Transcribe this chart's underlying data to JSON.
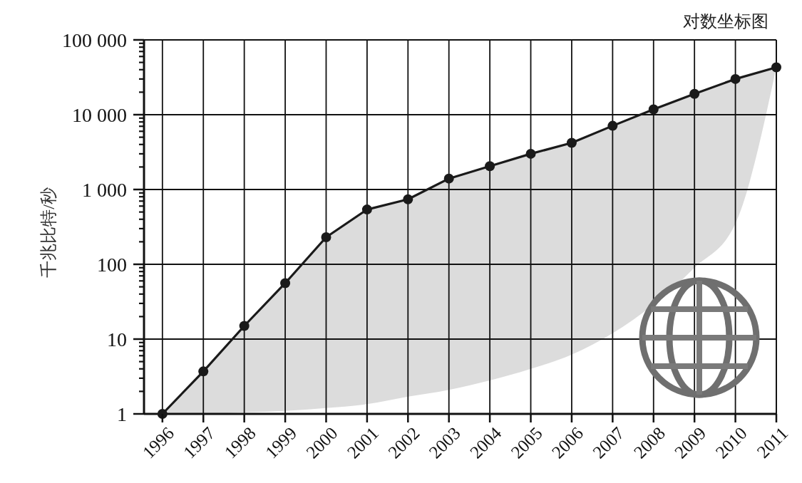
{
  "chart_data": {
    "type": "line",
    "title": "对数坐标图",
    "ylabel": "千兆比特/秒",
    "x": [
      1996,
      1997,
      1998,
      1999,
      2000,
      2001,
      2002,
      2003,
      2004,
      2005,
      2006,
      2007,
      2008,
      2009,
      2010,
      2011
    ],
    "xlim": [
      1995.55,
      2011
    ],
    "xticks": [
      1996,
      1997,
      1998,
      1999,
      2000,
      2001,
      2002,
      2003,
      2004,
      2005,
      2006,
      2007,
      2008,
      2009,
      2010,
      2011
    ],
    "ylim": [
      1,
      100000
    ],
    "yticks": [
      1,
      {
        "value": 2,
        "label": null
      },
      {
        "value": 3,
        "label": null
      },
      {
        "value": 4,
        "label": null
      },
      {
        "value": 5,
        "label": null
      },
      {
        "value": 6,
        "label": null
      },
      {
        "value": 7,
        "label": null
      },
      {
        "value": 8,
        "label": null
      },
      {
        "value": 9,
        "label": null
      },
      10,
      {
        "value": 20,
        "label": null
      },
      {
        "value": 30,
        "label": null
      },
      {
        "value": 40,
        "label": null
      },
      {
        "value": 50,
        "label": null
      },
      {
        "value": 60,
        "label": null
      },
      {
        "value": 70,
        "label": null
      },
      {
        "value": 80,
        "label": null
      },
      {
        "value": 90,
        "label": null
      },
      100,
      {
        "value": 200,
        "label": null
      },
      {
        "value": 300,
        "label": null
      },
      {
        "value": 400,
        "label": null
      },
      {
        "value": 500,
        "label": null
      },
      {
        "value": 600,
        "label": null
      },
      {
        "value": 700,
        "label": null
      },
      {
        "value": 800,
        "label": null
      },
      {
        "value": 900,
        "label": null
      },
      {
        "value": 1000,
        "label": "1 000"
      },
      {
        "value": 2000,
        "label": null
      },
      {
        "value": 3000,
        "label": null
      },
      {
        "value": 4000,
        "label": null
      },
      {
        "value": 5000,
        "label": null
      },
      {
        "value": 6000,
        "label": null
      },
      {
        "value": 7000,
        "label": null
      },
      {
        "value": 8000,
        "label": null
      },
      {
        "value": 9000,
        "label": null
      },
      {
        "value": 10000,
        "label": "10 000"
      },
      {
        "value": 20000,
        "label": null
      },
      {
        "value": 30000,
        "label": null
      },
      {
        "value": 40000,
        "label": null
      },
      {
        "value": 50000,
        "label": null
      },
      {
        "value": 60000,
        "label": null
      },
      {
        "value": 70000,
        "label": null
      },
      {
        "value": 80000,
        "label": null
      },
      {
        "value": 90000,
        "label": null
      },
      {
        "value": 100000,
        "label": "100 000"
      }
    ],
    "log": true,
    "grid": true,
    "marker": "circle",
    "line_style": "solid",
    "series": [
      {
        "color": "#1a1a1a",
        "values": [
          1,
          3.7,
          15,
          56,
          230,
          540,
          740,
          1400,
          2050,
          3000,
          4200,
          7100,
          11800,
          19000,
          30000,
          43000
        ],
        "lower": [
          1,
          1,
          1.05,
          1.1,
          1.2,
          1.35,
          1.7,
          2.1,
          2.8,
          4,
          6.2,
          12,
          29,
          90,
          350,
          43000
        ],
        "upper": [
          1,
          3.7,
          15,
          56,
          230,
          540,
          740,
          1400,
          2050,
          3000,
          4200,
          7100,
          11800,
          19000,
          30000,
          43000
        ]
      }
    ]
  }
}
